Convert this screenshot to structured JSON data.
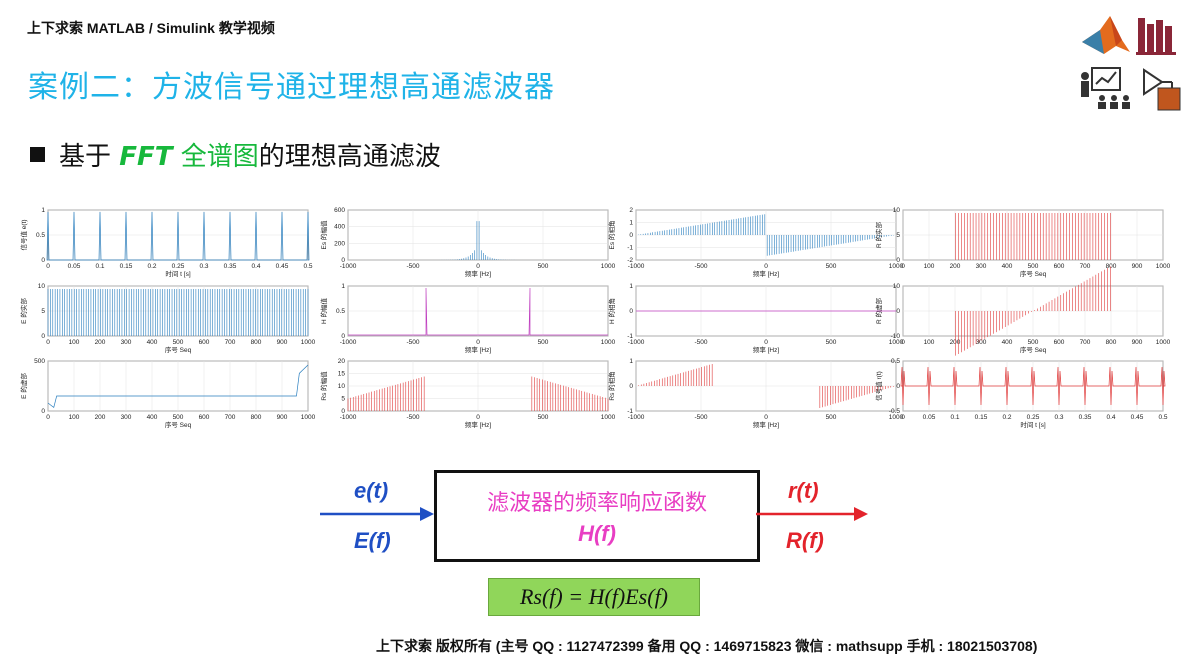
{
  "header": {
    "brand": "上下求索 MATLAB / Simulink 教学视频"
  },
  "slide": {
    "title": "案例二：方波信号通过理想高通滤波器",
    "bullet": {
      "prefix": "基于 ",
      "kw1": "FFT",
      "kw2": " 全谱图",
      "suffix": "的理想高通滤波"
    }
  },
  "icons": [
    "matlab-logo-icon",
    "library-books-icon",
    "teacher-icon",
    "simulink-block-icon"
  ],
  "plots": [
    {
      "id": "p11",
      "ylabel": "信号值 e(t)",
      "xlabel": "时间 t [s]",
      "xticks": [
        "0",
        "0.05",
        "0.1",
        "0.15",
        "0.2",
        "0.25",
        "0.3",
        "0.35",
        "0.4",
        "0.45",
        "0.5"
      ],
      "yticks": [
        "0",
        "0.5",
        "1"
      ],
      "color": "#2a7fbf",
      "kind": "pulse"
    },
    {
      "id": "p12",
      "ylabel": "Es 的幅值",
      "xlabel": "频率 [Hz]",
      "xticks": [
        "-1000",
        "-500",
        "0",
        "500",
        "1000"
      ],
      "yticks": [
        "0",
        "200",
        "400",
        "600"
      ],
      "color": "#2a7fbf",
      "kind": "peak"
    },
    {
      "id": "p13",
      "ylabel": "Es 的相角",
      "xlabel": "频率 [Hz]",
      "xticks": [
        "-1000",
        "-500",
        "0",
        "500",
        "1000"
      ],
      "yticks": [
        "-2",
        "-1",
        "0",
        "1",
        "2"
      ],
      "color": "#2a7fbf",
      "kind": "phase"
    },
    {
      "id": "p14",
      "ylabel": "R 的实部",
      "xlabel": "序号 Seq",
      "xticks": [
        "0",
        "100",
        "200",
        "300",
        "400",
        "500",
        "600",
        "700",
        "800",
        "900",
        "1000"
      ],
      "yticks": [
        "0",
        "5",
        "10"
      ],
      "color": "#e03a3a",
      "kind": "band"
    },
    {
      "id": "p21",
      "ylabel": "E 的实部",
      "xlabel": "序号 Seq",
      "xticks": [
        "0",
        "100",
        "200",
        "300",
        "400",
        "500",
        "600",
        "700",
        "800",
        "900",
        "1000"
      ],
      "yticks": [
        "0",
        "5",
        "10"
      ],
      "color": "#2a7fbf",
      "kind": "dense"
    },
    {
      "id": "p22",
      "ylabel": "H 的幅值",
      "xlabel": "频率 [Hz]",
      "xticks": [
        "-1000",
        "-500",
        "0",
        "500",
        "1000"
      ],
      "yticks": [
        "0",
        "0.5",
        "1"
      ],
      "color": "#c040c0",
      "kind": "hpf"
    },
    {
      "id": "p23",
      "ylabel": "H 的相角",
      "xlabel": "频率 [Hz]",
      "xticks": [
        "-1000",
        "-500",
        "0",
        "500",
        "1000"
      ],
      "yticks": [
        "-1",
        "0",
        "1"
      ],
      "color": "#c040c0",
      "kind": "flat"
    },
    {
      "id": "p24",
      "ylabel": "R 的虚部",
      "xlabel": "序号 Seq",
      "xticks": [
        "0",
        "100",
        "200",
        "300",
        "400",
        "500",
        "600",
        "700",
        "800",
        "900",
        "1000"
      ],
      "yticks": [
        "-10",
        "0",
        "10"
      ],
      "color": "#e03a3a",
      "kind": "ramp"
    },
    {
      "id": "p31",
      "ylabel": "E 的虚部",
      "xlabel": "序号 Seq",
      "xticks": [
        "0",
        "100",
        "200",
        "300",
        "400",
        "500",
        "600",
        "700",
        "800",
        "900",
        "1000"
      ],
      "yticks": [
        "0",
        "500"
      ],
      "color": "#2a7fbf",
      "kind": "edgey"
    },
    {
      "id": "p32",
      "ylabel": "Rs 的幅值",
      "xlabel": "频率 [Hz]",
      "xticks": [
        "-1000",
        "-500",
        "0",
        "500",
        "1000"
      ],
      "yticks": [
        "0",
        "5",
        "10",
        "15",
        "20"
      ],
      "color": "#e03a3a",
      "kind": "rsmag"
    },
    {
      "id": "p33",
      "ylabel": "Rs 的相角",
      "xlabel": "频率 [Hz]",
      "xticks": [
        "-1000",
        "-500",
        "0",
        "500",
        "1000"
      ],
      "yticks": [
        "-1",
        "0",
        "1"
      ],
      "color": "#e03a3a",
      "kind": "rsphase"
    },
    {
      "id": "p34",
      "ylabel": "信号值 r(t)",
      "xlabel": "时间 t [s]",
      "xticks": [
        "0",
        "0.05",
        "0.1",
        "0.15",
        "0.2",
        "0.25",
        "0.3",
        "0.35",
        "0.4",
        "0.45",
        "0.5"
      ],
      "yticks": [
        "-0.5",
        "0",
        "0.5"
      ],
      "color": "#e03a3a",
      "kind": "spikes"
    }
  ],
  "diagram": {
    "input_time": "e(t)",
    "input_freq": "E(f)",
    "box_title": "滤波器的频率响应函数",
    "box_h": "H(f)",
    "output_time": "r(t)",
    "output_freq": "R(f)",
    "formula": "Rs(f) = H(f)Es(f)"
  },
  "footer": {
    "text": "上下求索  版权所有 (主号 QQ : 1127472399   备用 QQ : 1469715823   微信 : mathsupp   手机 : 18021503708)"
  }
}
